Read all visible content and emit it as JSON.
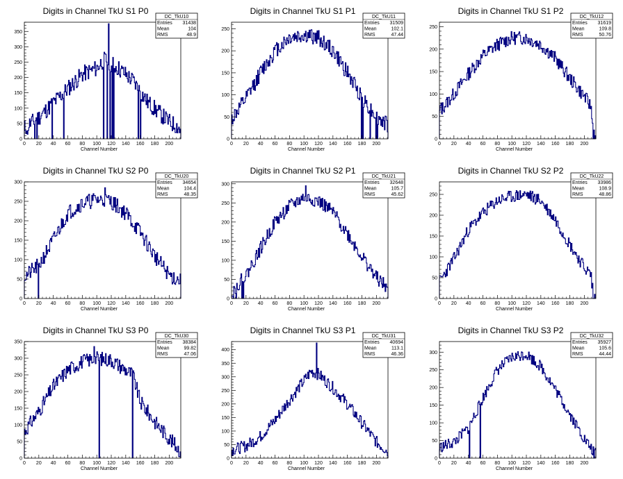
{
  "page": {
    "background": "#ffffff"
  },
  "style": {
    "line_color": "#000080"
  },
  "chart_data": [
    {
      "type": "histogram",
      "title": "Digits in Channel TkU S1 P0",
      "xlabel": "Channel Number",
      "ylabel": "",
      "xlim": [
        0,
        216
      ],
      "ylim": [
        0,
        380
      ],
      "xticks": [
        0,
        20,
        40,
        60,
        80,
        100,
        120,
        140,
        160,
        180,
        200
      ],
      "yticks": [
        0,
        50,
        100,
        150,
        200,
        250,
        300,
        350
      ],
      "stats": {
        "name": "DC_TkU10",
        "entries": "31438",
        "mean": "104",
        "rms": "48.9"
      },
      "profile": {
        "seed": 11,
        "lo": [
          [
            0,
            35
          ],
          [
            20,
            70
          ],
          [
            50,
            140
          ],
          [
            80,
            210
          ],
          [
            100,
            230
          ],
          [
            110,
            260
          ],
          [
            130,
            230
          ],
          [
            150,
            190
          ],
          [
            170,
            120
          ],
          [
            200,
            55
          ],
          [
            216,
            35
          ]
        ],
        "noise": 28,
        "spikes": [
          [
            4,
            15
          ],
          [
            14,
            0
          ],
          [
            17,
            0
          ],
          [
            38,
            0
          ],
          [
            54,
            0
          ],
          [
            109,
            0
          ],
          [
            114,
            0
          ],
          [
            116,
            375
          ],
          [
            118,
            0
          ],
          [
            121,
            0
          ],
          [
            123,
            0
          ],
          [
            157,
            0
          ],
          [
            160,
            0
          ],
          [
            214,
            20
          ]
        ]
      }
    },
    {
      "type": "histogram",
      "title": "Digits in Channel TkU S1 P1",
      "xlabel": "Channel Number",
      "ylabel": "",
      "xlim": [
        0,
        216
      ],
      "ylim": [
        0,
        265
      ],
      "xticks": [
        0,
        20,
        40,
        60,
        80,
        100,
        120,
        140,
        160,
        180,
        200
      ],
      "yticks": [
        0,
        50,
        100,
        150,
        200,
        250
      ],
      "stats": {
        "name": "DC_TkU11",
        "entries": "31509",
        "mean": "102.1",
        "rms": "47.44"
      },
      "profile": {
        "seed": 12,
        "lo": [
          [
            0,
            45
          ],
          [
            20,
            90
          ],
          [
            40,
            150
          ],
          [
            60,
            200
          ],
          [
            80,
            230
          ],
          [
            100,
            235
          ],
          [
            120,
            230
          ],
          [
            140,
            200
          ],
          [
            160,
            150
          ],
          [
            180,
            95
          ],
          [
            200,
            50
          ],
          [
            216,
            30
          ]
        ],
        "noise": 18,
        "spikes": [
          [
            179,
            0
          ],
          [
            181,
            0
          ],
          [
            191,
            0
          ],
          [
            199,
            0
          ],
          [
            201,
            0
          ]
        ]
      }
    },
    {
      "type": "histogram",
      "title": "Digits in Channel TkU S1 P2",
      "xlabel": "Channel Number",
      "ylabel": "",
      "xlim": [
        0,
        216
      ],
      "ylim": [
        0,
        260
      ],
      "xticks": [
        0,
        20,
        40,
        60,
        80,
        100,
        120,
        140,
        160,
        180,
        200
      ],
      "yticks": [
        0,
        50,
        100,
        150,
        200,
        250
      ],
      "stats": {
        "name": "DC_TkU12",
        "entries": "31619",
        "mean": "109.8",
        "rms": "50.76"
      },
      "profile": {
        "seed": 13,
        "lo": [
          [
            0,
            60
          ],
          [
            20,
            100
          ],
          [
            40,
            145
          ],
          [
            60,
            185
          ],
          [
            80,
            210
          ],
          [
            100,
            225
          ],
          [
            120,
            225
          ],
          [
            140,
            210
          ],
          [
            160,
            180
          ],
          [
            180,
            135
          ],
          [
            200,
            95
          ],
          [
            210,
            70
          ],
          [
            215,
            0
          ]
        ],
        "noise": 15,
        "spikes": [
          [
            2,
            80
          ],
          [
            210,
            45
          ],
          [
            212,
            0
          ]
        ]
      }
    },
    {
      "type": "histogram",
      "title": "Digits in Channel TkU S2 P0",
      "xlabel": "Channel Number",
      "ylabel": "",
      "xlim": [
        0,
        216
      ],
      "ylim": [
        0,
        300
      ],
      "xticks": [
        0,
        20,
        40,
        60,
        80,
        100,
        120,
        140,
        160,
        180,
        200
      ],
      "yticks": [
        0,
        50,
        100,
        150,
        200,
        250,
        300
      ],
      "stats": {
        "name": "DC_TkU20",
        "entries": "34654",
        "mean": "104.4",
        "rms": "48.35"
      },
      "profile": {
        "seed": 21,
        "lo": [
          [
            0,
            55
          ],
          [
            20,
            85
          ],
          [
            40,
            150
          ],
          [
            60,
            220
          ],
          [
            80,
            245
          ],
          [
            100,
            255
          ],
          [
            120,
            250
          ],
          [
            140,
            220
          ],
          [
            160,
            170
          ],
          [
            180,
            110
          ],
          [
            200,
            60
          ],
          [
            216,
            45
          ]
        ],
        "noise": 20,
        "spikes": [
          [
            19,
            0
          ],
          [
            111,
            285
          ],
          [
            216,
            15
          ]
        ]
      }
    },
    {
      "type": "histogram",
      "title": "Digits in Channel TkU S2 P1",
      "xlabel": "Channel Number",
      "ylabel": "",
      "xlim": [
        0,
        216
      ],
      "ylim": [
        0,
        305
      ],
      "xticks": [
        0,
        20,
        40,
        60,
        80,
        100,
        120,
        140,
        160,
        180,
        200
      ],
      "yticks": [
        0,
        50,
        100,
        150,
        200,
        250,
        300
      ],
      "stats": {
        "name": "DC_TkU21",
        "entries": "32648",
        "mean": "105.7",
        "rms": "45.62"
      },
      "profile": {
        "seed": 22,
        "lo": [
          [
            0,
            20
          ],
          [
            20,
            60
          ],
          [
            40,
            130
          ],
          [
            60,
            200
          ],
          [
            80,
            240
          ],
          [
            100,
            265
          ],
          [
            120,
            255
          ],
          [
            140,
            225
          ],
          [
            160,
            170
          ],
          [
            180,
            110
          ],
          [
            200,
            55
          ],
          [
            216,
            25
          ]
        ],
        "noise": 18,
        "spikes": [
          [
            2,
            0
          ],
          [
            6,
            0
          ],
          [
            14,
            0
          ],
          [
            16,
            0
          ],
          [
            102,
            295
          ]
        ]
      }
    },
    {
      "type": "histogram",
      "title": "Digits in Channel TkU S2 P2",
      "xlabel": "Channel Number",
      "ylabel": "",
      "xlim": [
        0,
        216
      ],
      "ylim": [
        0,
        280
      ],
      "xticks": [
        0,
        20,
        40,
        60,
        80,
        100,
        120,
        140,
        160,
        180,
        200
      ],
      "yticks": [
        0,
        50,
        100,
        150,
        200,
        250
      ],
      "stats": {
        "name": "DC_TkU22",
        "entries": "33986",
        "mean": "108.9",
        "rms": "48.86"
      },
      "profile": {
        "seed": 23,
        "lo": [
          [
            0,
            40
          ],
          [
            20,
            95
          ],
          [
            40,
            165
          ],
          [
            60,
            205
          ],
          [
            80,
            235
          ],
          [
            100,
            245
          ],
          [
            120,
            250
          ],
          [
            140,
            235
          ],
          [
            160,
            190
          ],
          [
            180,
            130
          ],
          [
            200,
            75
          ],
          [
            210,
            55
          ],
          [
            214,
            0
          ]
        ],
        "noise": 15,
        "spikes": [
          [
            210,
            25
          ],
          [
            212,
            0
          ]
        ]
      }
    },
    {
      "type": "histogram",
      "title": "Digits in Channel TkU S3 P0",
      "xlabel": "Channel Number",
      "ylabel": "",
      "xlim": [
        0,
        216
      ],
      "ylim": [
        0,
        350
      ],
      "xticks": [
        0,
        20,
        40,
        60,
        80,
        100,
        120,
        140,
        160,
        180,
        200
      ],
      "yticks": [
        0,
        50,
        100,
        150,
        200,
        250,
        300,
        350
      ],
      "stats": {
        "name": "DC_TkU30",
        "entries": "38384",
        "mean": "99.82",
        "rms": "47.06"
      },
      "profile": {
        "seed": 31,
        "lo": [
          [
            0,
            80
          ],
          [
            20,
            140
          ],
          [
            40,
            215
          ],
          [
            60,
            265
          ],
          [
            80,
            290
          ],
          [
            100,
            300
          ],
          [
            120,
            295
          ],
          [
            140,
            265
          ],
          [
            150,
            250
          ],
          [
            160,
            170
          ],
          [
            180,
            110
          ],
          [
            200,
            60
          ],
          [
            216,
            20
          ]
        ],
        "noise": 22,
        "spikes": [
          [
            103,
            0
          ],
          [
            149,
            0
          ],
          [
            96,
            335
          ]
        ]
      }
    },
    {
      "type": "histogram",
      "title": "Digits in Channel TkU S3 P1",
      "xlabel": "Channel Number",
      "ylabel": "",
      "xlim": [
        0,
        216
      ],
      "ylim": [
        0,
        430
      ],
      "xticks": [
        0,
        20,
        40,
        60,
        80,
        100,
        120,
        140,
        160,
        180,
        200
      ],
      "yticks": [
        0,
        50,
        100,
        150,
        200,
        250,
        300,
        350,
        400
      ],
      "stats": {
        "name": "DC_TkU31",
        "entries": "40694",
        "mean": "113.1",
        "rms": "46.36"
      },
      "profile": {
        "seed": 32,
        "lo": [
          [
            0,
            30
          ],
          [
            20,
            45
          ],
          [
            40,
            80
          ],
          [
            60,
            140
          ],
          [
            80,
            215
          ],
          [
            100,
            285
          ],
          [
            110,
            320
          ],
          [
            120,
            310
          ],
          [
            140,
            260
          ],
          [
            160,
            200
          ],
          [
            180,
            130
          ],
          [
            200,
            60
          ],
          [
            216,
            25
          ]
        ],
        "noise": 22,
        "spikes": [
          [
            117,
            425
          ]
        ]
      }
    },
    {
      "type": "histogram",
      "title": "Digits in Channel TkU S3 P2",
      "xlabel": "Channel Number",
      "ylabel": "",
      "xlim": [
        0,
        216
      ],
      "ylim": [
        0,
        330
      ],
      "xticks": [
        0,
        20,
        40,
        60,
        80,
        100,
        120,
        140,
        160,
        180,
        200
      ],
      "yticks": [
        0,
        50,
        100,
        150,
        200,
        250,
        300
      ],
      "stats": {
        "name": "DC_TkU32",
        "entries": "35927",
        "mean": "105.6",
        "rms": "44.44"
      },
      "profile": {
        "seed": 33,
        "lo": [
          [
            0,
            30
          ],
          [
            20,
            45
          ],
          [
            40,
            85
          ],
          [
            60,
            170
          ],
          [
            80,
            250
          ],
          [
            100,
            285
          ],
          [
            120,
            295
          ],
          [
            140,
            260
          ],
          [
            160,
            195
          ],
          [
            180,
            125
          ],
          [
            200,
            55
          ],
          [
            212,
            20
          ]
        ],
        "noise": 16,
        "spikes": [
          [
            41,
            0
          ],
          [
            56,
            0
          ],
          [
            213,
            0
          ]
        ]
      }
    }
  ]
}
